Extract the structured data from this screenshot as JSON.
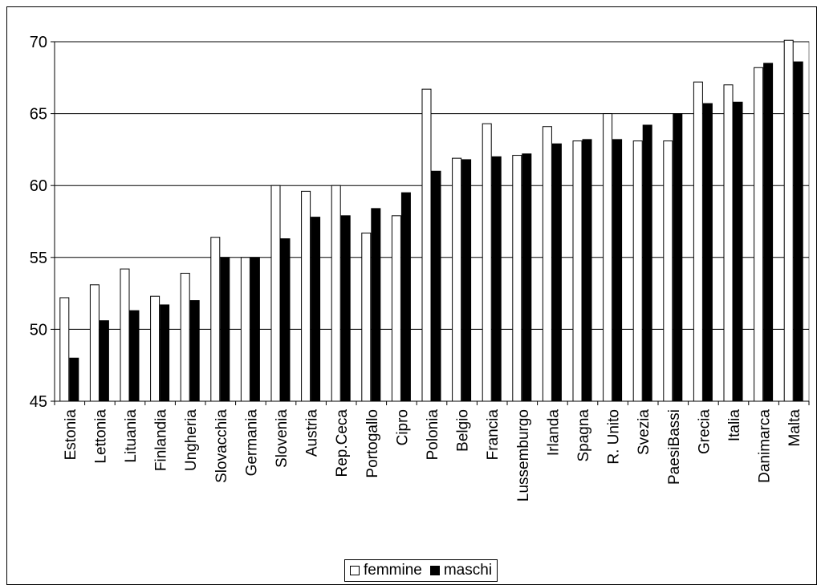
{
  "chart_data": {
    "type": "bar",
    "title": "",
    "xlabel": "",
    "ylabel": "",
    "ylim": [
      45,
      70
    ],
    "yticks": [
      45,
      50,
      55,
      60,
      65,
      70
    ],
    "grid": true,
    "legend_position": "bottom",
    "categories": [
      "Estonia",
      "Lettonia",
      "Lituania",
      "Finlandia",
      "Ungheria",
      "Slovacchia",
      "Germania",
      "Slovenia",
      "Austria",
      "Rep.Ceca",
      "Portogallo",
      "Cipro",
      "Polonia",
      "Belgio",
      "Francia",
      "Lussemburgo",
      "Irlanda",
      "Spagna",
      "R. Unito",
      "Svezia",
      "PaesiBassi",
      "Grecia",
      "Italia",
      "Danimarca",
      "Malta"
    ],
    "series": [
      {
        "name": "femmine",
        "color": "#ffffff",
        "values": [
          52.2,
          53.1,
          54.2,
          52.3,
          53.9,
          56.4,
          55.0,
          60.0,
          59.6,
          60.0,
          56.7,
          57.9,
          66.7,
          61.9,
          64.3,
          62.1,
          64.1,
          63.1,
          65.0,
          63.1,
          63.1,
          67.2,
          67.0,
          68.2,
          70.1
        ]
      },
      {
        "name": "maschi",
        "color": "#000000",
        "values": [
          48.0,
          50.6,
          51.3,
          51.7,
          52.0,
          55.0,
          55.0,
          56.3,
          57.8,
          57.9,
          58.4,
          59.5,
          61.0,
          61.8,
          62.0,
          62.2,
          62.9,
          63.2,
          63.2,
          64.2,
          65.0,
          65.7,
          65.8,
          68.5,
          68.6
        ]
      }
    ]
  }
}
